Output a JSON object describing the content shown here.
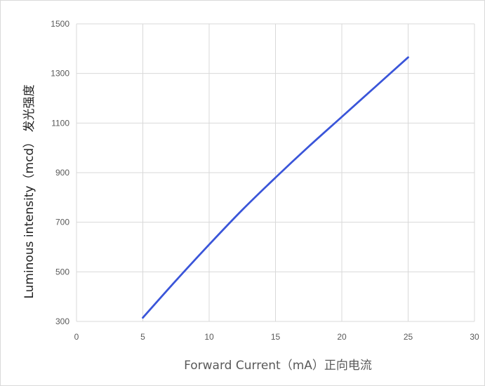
{
  "chart_data": {
    "type": "line",
    "title": "",
    "xlabel": "Forward Current（mA）正向电流",
    "ylabel": "Luminous intensity（mcd） 发光强度",
    "xlim": [
      0,
      30
    ],
    "ylim": [
      300,
      1500
    ],
    "x_ticks": [
      "0",
      "5",
      "10",
      "15",
      "20",
      "25",
      "30"
    ],
    "y_ticks": [
      "300",
      "500",
      "700",
      "900",
      "1100",
      "1300",
      "1500"
    ],
    "grid": true,
    "legend": "none",
    "series": [
      {
        "color": "#3a55d9",
        "x": [
          5,
          7.5,
          10,
          12.5,
          15,
          17.5,
          20,
          22.5,
          25
        ],
        "y": [
          315,
          465,
          610,
          750,
          880,
          1005,
          1125,
          1245,
          1365
        ]
      }
    ]
  }
}
